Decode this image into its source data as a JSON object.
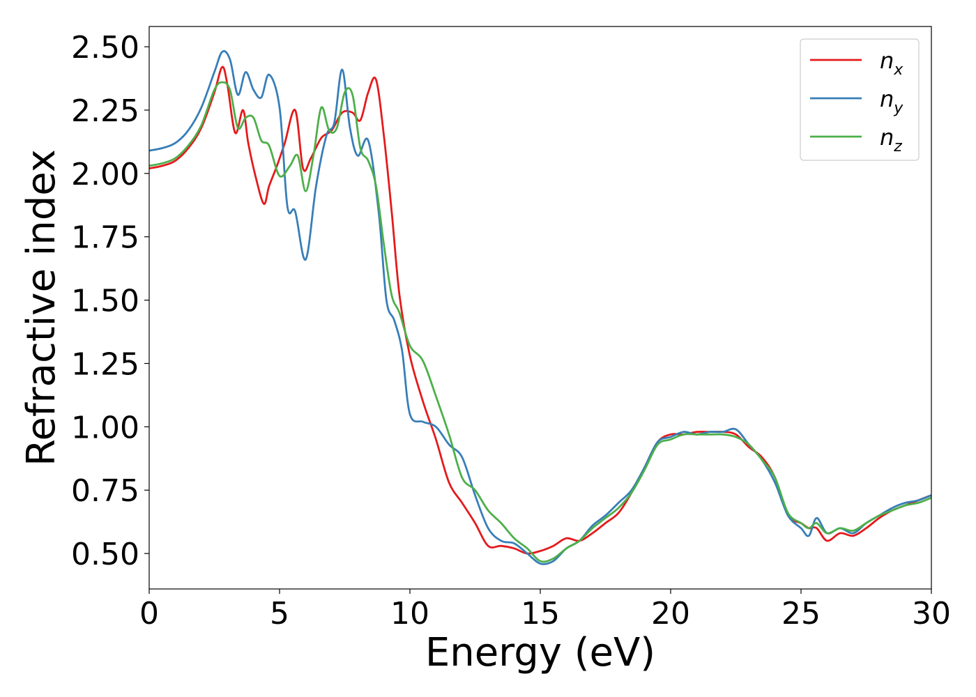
{
  "chart_data": {
    "type": "line",
    "xlabel": "Energy (eV)",
    "ylabel": "Refractive index",
    "xlim": [
      0,
      30
    ],
    "ylim": [
      0.36,
      2.58
    ],
    "xticks": [
      0,
      5,
      10,
      15,
      20,
      25,
      30
    ],
    "xtick_labels": [
      "0",
      "5",
      "10",
      "15",
      "20",
      "25",
      "30"
    ],
    "yticks": [
      0.5,
      0.75,
      1.0,
      1.25,
      1.5,
      1.75,
      2.0,
      2.25,
      2.5
    ],
    "ytick_labels": [
      "0.50",
      "0.75",
      "1.00",
      "1.25",
      "1.50",
      "1.75",
      "2.00",
      "2.25",
      "2.50"
    ],
    "grid": false,
    "legend_position": "top-right",
    "series": [
      {
        "name": "n_x",
        "label_base": "n",
        "label_sub": "x",
        "color": "#e41a1c",
        "x": [
          0,
          0.5,
          1,
          1.5,
          2,
          2.5,
          2.8,
          3.0,
          3.3,
          3.6,
          3.8,
          4.1,
          4.4,
          4.6,
          4.9,
          5.2,
          5.6,
          5.9,
          6.2,
          6.6,
          7.0,
          7.4,
          7.8,
          8.1,
          8.4,
          8.7,
          9.0,
          9.3,
          9.6,
          10.0,
          10.5,
          11.0,
          11.5,
          12.0,
          12.5,
          13.0,
          13.5,
          14.0,
          14.5,
          15.0,
          15.5,
          16.0,
          16.5,
          17.0,
          17.5,
          18.0,
          18.5,
          19.0,
          19.5,
          20.0,
          20.5,
          21.0,
          21.5,
          22.0,
          22.5,
          23.0,
          23.5,
          24.0,
          24.5,
          25.0,
          25.3,
          25.6,
          26.0,
          26.5,
          27.0,
          27.5,
          28.0,
          28.5,
          29.0,
          29.5,
          30.0
        ],
        "y": [
          2.02,
          2.03,
          2.05,
          2.1,
          2.18,
          2.32,
          2.42,
          2.35,
          2.16,
          2.25,
          2.12,
          1.98,
          1.88,
          1.95,
          2.03,
          2.12,
          2.25,
          2.02,
          2.06,
          2.14,
          2.17,
          2.24,
          2.24,
          2.21,
          2.32,
          2.37,
          2.15,
          1.85,
          1.52,
          1.28,
          1.1,
          0.95,
          0.78,
          0.7,
          0.62,
          0.53,
          0.53,
          0.52,
          0.5,
          0.51,
          0.53,
          0.56,
          0.55,
          0.58,
          0.62,
          0.66,
          0.74,
          0.84,
          0.94,
          0.97,
          0.97,
          0.98,
          0.98,
          0.98,
          0.97,
          0.92,
          0.88,
          0.8,
          0.65,
          0.62,
          0.6,
          0.6,
          0.55,
          0.58,
          0.57,
          0.6,
          0.64,
          0.67,
          0.69,
          0.71,
          0.73
        ]
      },
      {
        "name": "n_y",
        "label_base": "n",
        "label_sub": "y",
        "color": "#377eb8",
        "x": [
          0,
          0.5,
          1,
          1.5,
          2,
          2.5,
          2.8,
          3.1,
          3.4,
          3.7,
          4.0,
          4.3,
          4.6,
          5.0,
          5.3,
          5.6,
          6.0,
          6.4,
          6.8,
          7.1,
          7.4,
          7.7,
          8.0,
          8.4,
          8.8,
          9.1,
          9.4,
          9.7,
          10.0,
          10.5,
          11.0,
          11.5,
          12.0,
          12.5,
          13.0,
          13.5,
          14.0,
          14.5,
          15.0,
          15.5,
          16.0,
          16.5,
          17.0,
          17.5,
          18.0,
          18.5,
          19.0,
          19.5,
          20.0,
          20.5,
          21.0,
          21.5,
          22.0,
          22.5,
          23.0,
          23.5,
          24.0,
          24.5,
          25.0,
          25.3,
          25.6,
          26.0,
          26.5,
          27.0,
          27.5,
          28.0,
          28.5,
          29.0,
          29.5,
          30.0
        ],
        "y": [
          2.09,
          2.1,
          2.12,
          2.17,
          2.26,
          2.4,
          2.48,
          2.45,
          2.31,
          2.4,
          2.33,
          2.3,
          2.39,
          2.26,
          1.87,
          1.85,
          1.66,
          1.95,
          2.15,
          2.2,
          2.41,
          2.18,
          2.07,
          2.13,
          1.85,
          1.5,
          1.42,
          1.3,
          1.05,
          1.02,
          1.0,
          0.93,
          0.88,
          0.73,
          0.6,
          0.55,
          0.54,
          0.5,
          0.46,
          0.47,
          0.52,
          0.55,
          0.61,
          0.65,
          0.7,
          0.75,
          0.84,
          0.94,
          0.96,
          0.98,
          0.97,
          0.98,
          0.98,
          0.99,
          0.93,
          0.87,
          0.78,
          0.65,
          0.6,
          0.57,
          0.64,
          0.58,
          0.6,
          0.58,
          0.62,
          0.65,
          0.68,
          0.7,
          0.71,
          0.73
        ]
      },
      {
        "name": "n_z",
        "label_base": "n",
        "label_sub": "z",
        "color": "#4daf4a",
        "x": [
          0,
          0.5,
          1,
          1.5,
          2,
          2.5,
          2.8,
          3.1,
          3.4,
          3.7,
          4.0,
          4.3,
          4.6,
          5.0,
          5.4,
          5.7,
          6.0,
          6.3,
          6.6,
          6.9,
          7.2,
          7.5,
          7.8,
          8.1,
          8.4,
          8.7,
          9.0,
          9.3,
          9.6,
          10.0,
          10.5,
          11.0,
          11.5,
          12.0,
          12.5,
          13.0,
          13.5,
          14.0,
          14.5,
          15.0,
          15.5,
          16.0,
          16.5,
          17.0,
          17.5,
          18.0,
          18.5,
          19.0,
          19.5,
          20.0,
          20.5,
          21.0,
          21.5,
          22.0,
          22.5,
          23.0,
          23.5,
          24.0,
          24.5,
          25.0,
          25.3,
          25.6,
          26.0,
          26.5,
          27.0,
          27.5,
          28.0,
          28.5,
          29.0,
          29.5,
          30.0
        ],
        "y": [
          2.03,
          2.04,
          2.06,
          2.11,
          2.19,
          2.33,
          2.36,
          2.33,
          2.18,
          2.22,
          2.22,
          2.13,
          2.11,
          1.99,
          2.03,
          2.07,
          1.93,
          2.07,
          2.26,
          2.17,
          2.18,
          2.32,
          2.31,
          2.1,
          2.05,
          1.95,
          1.72,
          1.52,
          1.45,
          1.32,
          1.26,
          1.12,
          0.97,
          0.8,
          0.75,
          0.67,
          0.62,
          0.56,
          0.52,
          0.47,
          0.48,
          0.52,
          0.55,
          0.6,
          0.64,
          0.68,
          0.74,
          0.83,
          0.93,
          0.95,
          0.97,
          0.97,
          0.97,
          0.97,
          0.96,
          0.93,
          0.87,
          0.8,
          0.66,
          0.62,
          0.6,
          0.62,
          0.58,
          0.6,
          0.59,
          0.62,
          0.65,
          0.67,
          0.69,
          0.7,
          0.72
        ]
      }
    ]
  }
}
